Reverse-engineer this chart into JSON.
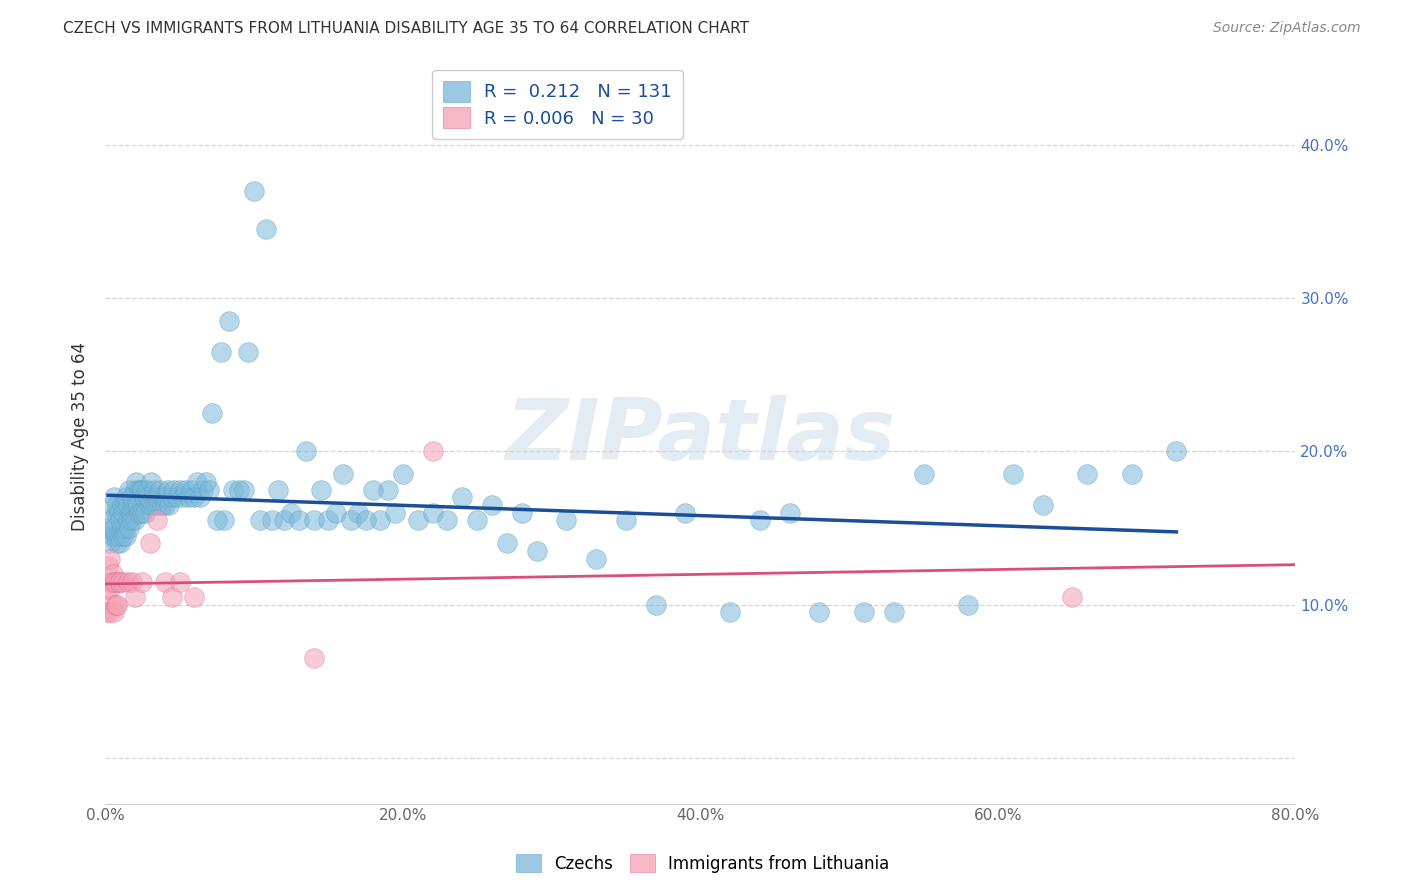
{
  "title": "CZECH VS IMMIGRANTS FROM LITHUANIA DISABILITY AGE 35 TO 64 CORRELATION CHART",
  "source": "Source: ZipAtlas.com",
  "ylabel": "Disability Age 35 to 64",
  "xlim": [
    0.0,
    0.8
  ],
  "ylim": [
    -0.03,
    0.45
  ],
  "yticks": [
    0.0,
    0.1,
    0.2,
    0.3,
    0.4
  ],
  "xticks": [
    0.0,
    0.2,
    0.4,
    0.6,
    0.8
  ],
  "xtick_labels": [
    "0.0%",
    "20.0%",
    "40.0%",
    "60.0%",
    "80.0%"
  ],
  "ytick_labels_right": [
    "",
    "10.0%",
    "20.0%",
    "30.0%",
    "40.0%"
  ],
  "czechs_R": "0.212",
  "czechs_N": "131",
  "lithuania_R": "0.006",
  "lithuania_N": "30",
  "czechs_color": "#7ab8d9",
  "lithuania_color": "#f4a0b5",
  "czechs_line_color": "#1a4e99",
  "lithuania_line_color": "#d94f7a",
  "watermark": "ZIPatlas",
  "czechs_x": [
    0.002,
    0.003,
    0.004,
    0.005,
    0.005,
    0.006,
    0.006,
    0.007,
    0.007,
    0.008,
    0.008,
    0.009,
    0.009,
    0.01,
    0.01,
    0.011,
    0.011,
    0.012,
    0.012,
    0.013,
    0.013,
    0.014,
    0.014,
    0.015,
    0.015,
    0.016,
    0.016,
    0.017,
    0.018,
    0.018,
    0.019,
    0.02,
    0.02,
    0.021,
    0.021,
    0.022,
    0.023,
    0.023,
    0.024,
    0.025,
    0.025,
    0.026,
    0.027,
    0.028,
    0.029,
    0.03,
    0.031,
    0.032,
    0.033,
    0.034,
    0.035,
    0.036,
    0.037,
    0.038,
    0.039,
    0.04,
    0.041,
    0.042,
    0.043,
    0.045,
    0.046,
    0.048,
    0.05,
    0.052,
    0.054,
    0.056,
    0.058,
    0.06,
    0.062,
    0.064,
    0.066,
    0.068,
    0.07,
    0.072,
    0.075,
    0.078,
    0.08,
    0.083,
    0.086,
    0.09,
    0.093,
    0.096,
    0.1,
    0.104,
    0.108,
    0.112,
    0.116,
    0.12,
    0.125,
    0.13,
    0.135,
    0.14,
    0.145,
    0.15,
    0.155,
    0.16,
    0.165,
    0.17,
    0.175,
    0.18,
    0.185,
    0.19,
    0.195,
    0.2,
    0.21,
    0.22,
    0.23,
    0.24,
    0.25,
    0.26,
    0.27,
    0.28,
    0.29,
    0.31,
    0.33,
    0.35,
    0.37,
    0.39,
    0.42,
    0.44,
    0.46,
    0.48,
    0.51,
    0.53,
    0.55,
    0.58,
    0.61,
    0.63,
    0.66,
    0.69,
    0.72
  ],
  "czechs_y": [
    0.15,
    0.14,
    0.155,
    0.145,
    0.165,
    0.15,
    0.17,
    0.145,
    0.16,
    0.14,
    0.165,
    0.145,
    0.16,
    0.14,
    0.155,
    0.15,
    0.165,
    0.145,
    0.16,
    0.15,
    0.165,
    0.145,
    0.17,
    0.155,
    0.165,
    0.15,
    0.175,
    0.16,
    0.155,
    0.17,
    0.165,
    0.155,
    0.175,
    0.165,
    0.18,
    0.165,
    0.175,
    0.16,
    0.175,
    0.16,
    0.175,
    0.17,
    0.16,
    0.175,
    0.17,
    0.165,
    0.18,
    0.165,
    0.175,
    0.165,
    0.17,
    0.165,
    0.175,
    0.165,
    0.17,
    0.165,
    0.17,
    0.175,
    0.165,
    0.17,
    0.175,
    0.17,
    0.175,
    0.17,
    0.175,
    0.17,
    0.175,
    0.17,
    0.18,
    0.17,
    0.175,
    0.18,
    0.175,
    0.225,
    0.155,
    0.265,
    0.155,
    0.285,
    0.175,
    0.175,
    0.175,
    0.265,
    0.37,
    0.155,
    0.345,
    0.155,
    0.175,
    0.155,
    0.16,
    0.155,
    0.2,
    0.155,
    0.175,
    0.155,
    0.16,
    0.185,
    0.155,
    0.16,
    0.155,
    0.175,
    0.155,
    0.175,
    0.16,
    0.185,
    0.155,
    0.16,
    0.155,
    0.17,
    0.155,
    0.165,
    0.14,
    0.16,
    0.135,
    0.155,
    0.13,
    0.155,
    0.1,
    0.16,
    0.095,
    0.155,
    0.16,
    0.095,
    0.095,
    0.095,
    0.185,
    0.1,
    0.185,
    0.165,
    0.185,
    0.185,
    0.2
  ],
  "lithuania_x": [
    0.001,
    0.002,
    0.002,
    0.003,
    0.003,
    0.003,
    0.004,
    0.005,
    0.005,
    0.006,
    0.006,
    0.007,
    0.007,
    0.008,
    0.009,
    0.01,
    0.012,
    0.015,
    0.018,
    0.02,
    0.025,
    0.03,
    0.035,
    0.04,
    0.045,
    0.05,
    0.06,
    0.14,
    0.22,
    0.65
  ],
  "lithuania_y": [
    0.095,
    0.11,
    0.125,
    0.095,
    0.11,
    0.13,
    0.115,
    0.1,
    0.12,
    0.095,
    0.115,
    0.1,
    0.115,
    0.1,
    0.115,
    0.115,
    0.115,
    0.115,
    0.115,
    0.105,
    0.115,
    0.14,
    0.155,
    0.115,
    0.105,
    0.115,
    0.105,
    0.065,
    0.2,
    0.105
  ]
}
